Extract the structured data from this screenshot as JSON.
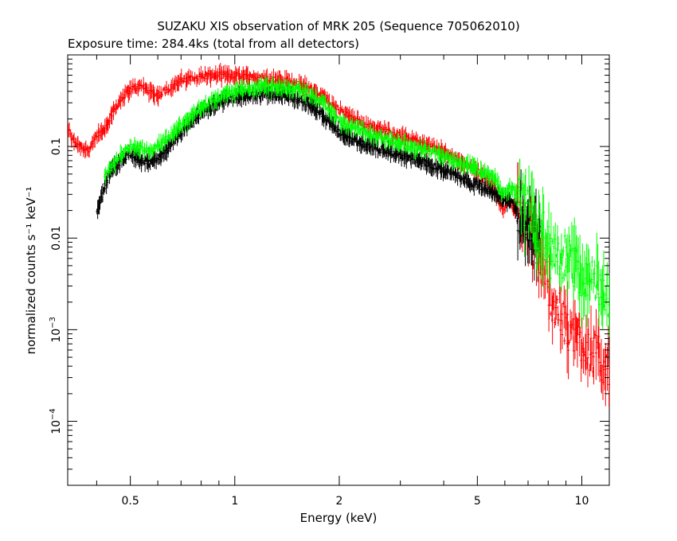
{
  "chart_data": {
    "type": "scatter",
    "title": "SUZAKU XIS observation of MRK 205 (Sequence 705062010)",
    "subtitle": "Exposure time: 284.4ks (total from all detectors)",
    "xlabel": "Energy (keV)",
    "ylabel": "normalized counts s⁻¹ keV⁻¹",
    "x_scale": "log",
    "y_scale": "log",
    "xlim": [
      0.33,
      12.0
    ],
    "ylim": [
      2e-05,
      1.0
    ],
    "x_ticks": [
      {
        "value": 0.5,
        "label": "0.5"
      },
      {
        "value": 1,
        "label": "1"
      },
      {
        "value": 2,
        "label": "2"
      },
      {
        "value": 5,
        "label": "5"
      },
      {
        "value": 10,
        "label": "10"
      }
    ],
    "y_ticks": [
      {
        "value": 0.1,
        "label": "0.1"
      },
      {
        "value": 0.01,
        "label": "0.01"
      },
      {
        "value": 0.001,
        "base": "10",
        "exp": "−3"
      },
      {
        "value": 0.0001,
        "base": "10",
        "exp": "−4"
      }
    ],
    "grid": false,
    "series": [
      {
        "color": "#ff0000",
        "points": [
          [
            0.33,
            0.16
          ],
          [
            0.34,
            0.12
          ],
          [
            0.36,
            0.1
          ],
          [
            0.38,
            0.09
          ],
          [
            0.4,
            0.13
          ],
          [
            0.42,
            0.15
          ],
          [
            0.44,
            0.22
          ],
          [
            0.47,
            0.33
          ],
          [
            0.5,
            0.42
          ],
          [
            0.54,
            0.46
          ],
          [
            0.57,
            0.4
          ],
          [
            0.6,
            0.36
          ],
          [
            0.65,
            0.44
          ],
          [
            0.7,
            0.52
          ],
          [
            0.8,
            0.58
          ],
          [
            0.9,
            0.6
          ],
          [
            1.0,
            0.6
          ],
          [
            1.2,
            0.56
          ],
          [
            1.4,
            0.52
          ],
          [
            1.6,
            0.45
          ],
          [
            1.8,
            0.35
          ],
          [
            2.0,
            0.25
          ],
          [
            2.3,
            0.18
          ],
          [
            2.7,
            0.15
          ],
          [
            3.2,
            0.12
          ],
          [
            3.8,
            0.095
          ],
          [
            4.3,
            0.075
          ],
          [
            4.8,
            0.06
          ],
          [
            5.3,
            0.045
          ],
          [
            5.6,
            0.035
          ],
          [
            5.9,
            0.02
          ],
          [
            6.2,
            0.025
          ],
          [
            6.6,
            0.02
          ],
          [
            7.0,
            0.012
          ],
          [
            7.6,
            0.006
          ],
          [
            8.3,
            0.002
          ],
          [
            9.0,
            0.001
          ],
          [
            10.0,
            0.0008
          ],
          [
            11.0,
            0.0005
          ],
          [
            12.0,
            0.0004
          ]
        ]
      },
      {
        "color": "#000000",
        "points": [
          [
            0.4,
            0.018
          ],
          [
            0.42,
            0.035
          ],
          [
            0.44,
            0.055
          ],
          [
            0.47,
            0.07
          ],
          [
            0.5,
            0.085
          ],
          [
            0.54,
            0.07
          ],
          [
            0.57,
            0.065
          ],
          [
            0.6,
            0.075
          ],
          [
            0.65,
            0.1
          ],
          [
            0.7,
            0.14
          ],
          [
            0.8,
            0.23
          ],
          [
            0.9,
            0.3
          ],
          [
            1.0,
            0.34
          ],
          [
            1.2,
            0.38
          ],
          [
            1.4,
            0.36
          ],
          [
            1.6,
            0.31
          ],
          [
            1.8,
            0.22
          ],
          [
            2.0,
            0.14
          ],
          [
            2.3,
            0.11
          ],
          [
            2.7,
            0.09
          ],
          [
            3.2,
            0.075
          ],
          [
            3.8,
            0.06
          ],
          [
            4.3,
            0.05
          ],
          [
            4.8,
            0.04
          ],
          [
            5.3,
            0.035
          ],
          [
            5.6,
            0.03
          ],
          [
            5.9,
            0.028
          ],
          [
            6.2,
            0.025
          ],
          [
            6.6,
            0.02
          ],
          [
            7.0,
            0.014
          ],
          [
            7.6,
            0.009
          ]
        ]
      },
      {
        "color": "#00ff00",
        "points": [
          [
            0.42,
            0.045
          ],
          [
            0.44,
            0.06
          ],
          [
            0.47,
            0.08
          ],
          [
            0.5,
            0.1
          ],
          [
            0.54,
            0.095
          ],
          [
            0.57,
            0.09
          ],
          [
            0.6,
            0.1
          ],
          [
            0.65,
            0.13
          ],
          [
            0.7,
            0.17
          ],
          [
            0.8,
            0.27
          ],
          [
            0.9,
            0.35
          ],
          [
            1.0,
            0.4
          ],
          [
            1.2,
            0.45
          ],
          [
            1.4,
            0.44
          ],
          [
            1.6,
            0.4
          ],
          [
            1.8,
            0.3
          ],
          [
            2.0,
            0.19
          ],
          [
            2.3,
            0.15
          ],
          [
            2.7,
            0.12
          ],
          [
            3.2,
            0.1
          ],
          [
            3.8,
            0.085
          ],
          [
            4.3,
            0.07
          ],
          [
            4.8,
            0.06
          ],
          [
            5.3,
            0.05
          ],
          [
            5.6,
            0.045
          ],
          [
            5.9,
            0.03
          ],
          [
            6.2,
            0.035
          ],
          [
            6.6,
            0.03
          ],
          [
            7.0,
            0.02
          ],
          [
            7.6,
            0.012
          ],
          [
            8.3,
            0.008
          ],
          [
            9.0,
            0.006
          ],
          [
            10.0,
            0.004
          ],
          [
            11.0,
            0.003
          ],
          [
            12.0,
            0.0025
          ]
        ]
      }
    ]
  }
}
